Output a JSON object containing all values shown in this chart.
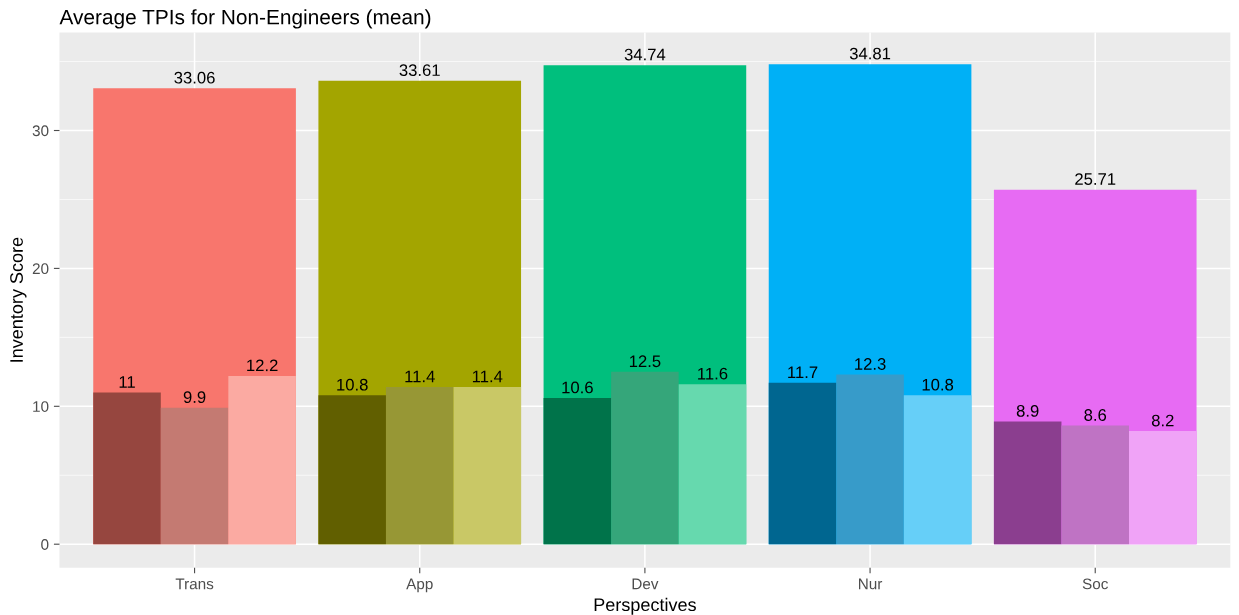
{
  "chart_data": {
    "type": "bar",
    "title": "Average TPIs for Non-Engineers (mean)",
    "xlabel": "Perspectives",
    "ylabel": "Inventory Score",
    "categories": [
      "Trans",
      "App",
      "Dev",
      "Nur",
      "Soc"
    ],
    "series": [
      {
        "values": [
          33.06,
          33.61,
          34.74,
          34.81,
          25.71
        ],
        "colors": [
          "#f8766d",
          "#a3a500",
          "#00bf7d",
          "#00b0f6",
          "#e76bf3"
        ]
      },
      {
        "values": [
          11,
          10.8,
          10.6,
          11.7,
          8.9
        ],
        "colors": [
          "#96463f",
          "#615f00",
          "#00734a",
          "#006690",
          "#8b3e8f"
        ]
      },
      {
        "values": [
          9.9,
          11.4,
          12.5,
          12.3,
          8.6
        ],
        "colors": [
          "#c47a72",
          "#979735",
          "#35a67a",
          "#379bc9",
          "#bf73c4"
        ]
      },
      {
        "values": [
          12.2,
          11.4,
          11.6,
          10.8,
          8.2
        ],
        "colors": [
          "#fbaaa2",
          "#c9c866",
          "#66d9ae",
          "#66cff8",
          "#f0a3f7"
        ]
      }
    ],
    "ylim": [
      -1.7,
      37.1
    ],
    "yticks": [
      0,
      10,
      20,
      30
    ],
    "grid": true,
    "data_labels": true
  }
}
